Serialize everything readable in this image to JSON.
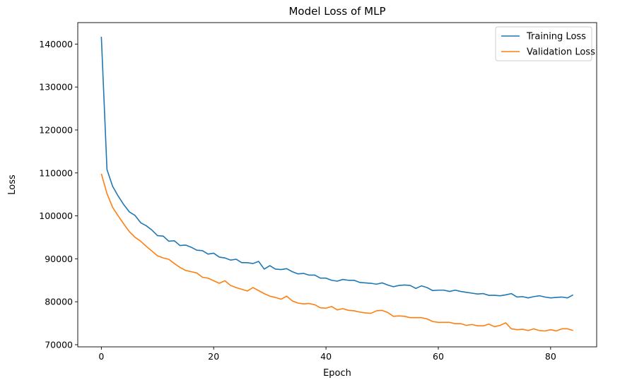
{
  "chart_data": {
    "type": "line",
    "title": "Model Loss of MLP",
    "xlabel": "Epoch",
    "ylabel": "Loss",
    "xlim": [
      -4.2,
      88.2
    ],
    "ylim": [
      69500,
      145000
    ],
    "xticks": [
      0,
      20,
      40,
      60,
      80
    ],
    "yticks": [
      70000,
      80000,
      90000,
      100000,
      110000,
      120000,
      130000,
      140000
    ],
    "grid": false,
    "legend_position": "top-right",
    "x": [
      0,
      1,
      2,
      3,
      4,
      5,
      6,
      7,
      8,
      9,
      10,
      11,
      12,
      13,
      14,
      15,
      16,
      17,
      18,
      19,
      20,
      21,
      22,
      23,
      24,
      25,
      26,
      27,
      28,
      29,
      30,
      31,
      32,
      33,
      34,
      35,
      36,
      37,
      38,
      39,
      40,
      41,
      42,
      43,
      44,
      45,
      46,
      47,
      48,
      49,
      50,
      51,
      52,
      53,
      54,
      55,
      56,
      57,
      58,
      59,
      60,
      61,
      62,
      63,
      64,
      65,
      66,
      67,
      68,
      69,
      70,
      71,
      72,
      73,
      74,
      75,
      76,
      77,
      78,
      79,
      80,
      81,
      82,
      83,
      84
    ],
    "series": [
      {
        "name": "Training Loss",
        "color": "#1f77b4",
        "values": [
          141700,
          110800,
          106900,
          104600,
          102600,
          100900,
          100100,
          98400,
          97700,
          96700,
          95400,
          95300,
          94100,
          94200,
          93100,
          93200,
          92700,
          92000,
          91900,
          91100,
          91300,
          90400,
          90200,
          89700,
          89900,
          89100,
          89100,
          88900,
          89400,
          87600,
          88400,
          87600,
          87500,
          87700,
          87000,
          86500,
          86600,
          86200,
          86200,
          85500,
          85500,
          85000,
          84800,
          85200,
          85000,
          85000,
          84500,
          84400,
          84300,
          84100,
          84400,
          83900,
          83500,
          83800,
          83900,
          83800,
          83100,
          83700,
          83300,
          82600,
          82700,
          82700,
          82400,
          82700,
          82400,
          82200,
          82000,
          81800,
          81900,
          81500,
          81500,
          81400,
          81600,
          81900,
          81100,
          81200,
          80900,
          81200,
          81400,
          81100,
          80900,
          81000,
          81100,
          80900,
          81600
        ]
      },
      {
        "name": "Validation Loss",
        "color": "#ff7f0e",
        "values": [
          109800,
          105200,
          102000,
          100000,
          98100,
          96300,
          95000,
          94100,
          92900,
          91800,
          90700,
          90200,
          89900,
          88900,
          88000,
          87300,
          87000,
          86700,
          85700,
          85500,
          84900,
          84300,
          84900,
          83800,
          83300,
          82900,
          82500,
          83300,
          82600,
          81900,
          81300,
          81000,
          80600,
          81300,
          80200,
          79700,
          79500,
          79600,
          79300,
          78600,
          78500,
          78900,
          78100,
          78400,
          78000,
          77900,
          77600,
          77400,
          77300,
          77900,
          78000,
          77500,
          76600,
          76700,
          76600,
          76300,
          76300,
          76300,
          76000,
          75400,
          75200,
          75200,
          75200,
          74900,
          74900,
          74500,
          74700,
          74400,
          74400,
          74800,
          74200,
          74500,
          75100,
          73700,
          73500,
          73600,
          73300,
          73700,
          73300,
          73200,
          73500,
          73200,
          73700,
          73700,
          73300
        ]
      }
    ]
  }
}
